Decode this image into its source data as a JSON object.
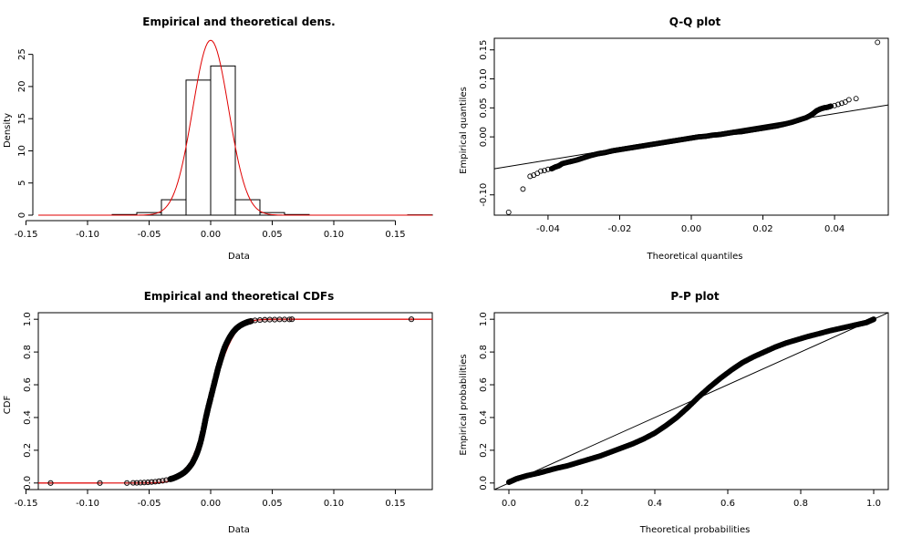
{
  "chart_data": [
    {
      "id": "density",
      "type": "histogram",
      "title": "Empirical and theoretical dens.",
      "xlabel": "Data",
      "ylabel": "Density",
      "xlim": [
        -0.14,
        0.18
      ],
      "ylim": [
        0,
        27.5
      ],
      "x_ticks": [
        -0.15,
        -0.1,
        -0.05,
        0.0,
        0.05,
        0.1,
        0.15
      ],
      "x_tick_labels": [
        "-0.15",
        "-0.10",
        "-0.05",
        "0.00",
        "0.05",
        "0.10",
        "0.15"
      ],
      "y_ticks": [
        0,
        5,
        10,
        15,
        20,
        25
      ],
      "y_tick_labels": [
        "0",
        "5",
        "10",
        "15",
        "20",
        "25"
      ],
      "bins": [
        {
          "x0": -0.08,
          "x1": -0.06,
          "density": 0.1
        },
        {
          "x0": -0.06,
          "x1": -0.04,
          "density": 0.4
        },
        {
          "x0": -0.04,
          "x1": -0.02,
          "density": 2.4
        },
        {
          "x0": -0.02,
          "x1": 0.0,
          "density": 21.0
        },
        {
          "x0": 0.0,
          "x1": 0.02,
          "density": 23.2
        },
        {
          "x0": 0.02,
          "x1": 0.04,
          "density": 2.4
        },
        {
          "x0": 0.04,
          "x1": 0.06,
          "density": 0.4
        },
        {
          "x0": 0.06,
          "x1": 0.08,
          "density": 0.1
        },
        {
          "x0": 0.16,
          "x1": 0.18,
          "density": 0.05
        }
      ],
      "fit": {
        "distribution": "normal",
        "mean": 0.0,
        "sd": 0.0146,
        "peak": 27.2,
        "color": "#e00000"
      }
    },
    {
      "id": "qq",
      "type": "scatter",
      "title": "Q-Q plot",
      "xlabel": "Theoretical quantiles",
      "ylabel": "Empirical quantiles",
      "xlim": [
        -0.055,
        0.055
      ],
      "ylim": [
        -0.135,
        0.17
      ],
      "x_ticks": [
        -0.04,
        -0.02,
        0.0,
        0.02,
        0.04
      ],
      "x_tick_labels": [
        "-0.04",
        "-0.02",
        "0.00",
        "0.02",
        "0.04"
      ],
      "y_ticks": [
        -0.1,
        0.0,
        0.05,
        0.1,
        0.15
      ],
      "y_tick_labels": [
        "-0.10",
        "0.00",
        "0.05",
        "0.10",
        "0.15"
      ],
      "reference_line": {
        "slope": 1,
        "intercept": 0
      },
      "x": [
        -0.051,
        -0.047,
        -0.045,
        -0.044,
        -0.043,
        -0.042,
        -0.041,
        -0.04,
        -0.039,
        -0.038,
        -0.037,
        -0.036,
        -0.034,
        -0.032,
        -0.03,
        -0.028,
        -0.026,
        -0.024,
        -0.022,
        -0.02,
        -0.018,
        -0.016,
        -0.014,
        -0.012,
        -0.01,
        -0.008,
        -0.006,
        -0.004,
        -0.002,
        0.0,
        0.002,
        0.004,
        0.006,
        0.008,
        0.01,
        0.012,
        0.014,
        0.016,
        0.018,
        0.02,
        0.022,
        0.024,
        0.026,
        0.028,
        0.03,
        0.032,
        0.033,
        0.034,
        0.035,
        0.036,
        0.037,
        0.038,
        0.039,
        0.04,
        0.041,
        0.042,
        0.043,
        0.044,
        0.046,
        0.052
      ],
      "y": [
        -0.13,
        -0.09,
        -0.068,
        -0.066,
        -0.063,
        -0.059,
        -0.058,
        -0.056,
        -0.055,
        -0.052,
        -0.05,
        -0.046,
        -0.043,
        -0.04,
        -0.036,
        -0.032,
        -0.029,
        -0.027,
        -0.024,
        -0.022,
        -0.02,
        -0.018,
        -0.016,
        -0.014,
        -0.012,
        -0.01,
        -0.008,
        -0.006,
        -0.004,
        -0.002,
        0.0,
        0.001,
        0.003,
        0.004,
        0.006,
        0.008,
        0.009,
        0.011,
        0.013,
        0.015,
        0.017,
        0.019,
        0.022,
        0.025,
        0.029,
        0.033,
        0.036,
        0.04,
        0.045,
        0.048,
        0.05,
        0.051,
        0.053,
        0.054,
        0.056,
        0.058,
        0.06,
        0.064,
        0.066,
        0.163
      ]
    },
    {
      "id": "cdf",
      "type": "line",
      "title": "Empirical and theoretical CDFs",
      "xlabel": "Data",
      "ylabel": "CDF",
      "xlim": [
        -0.14,
        0.18
      ],
      "ylim": [
        -0.04,
        1.04
      ],
      "x_ticks": [
        -0.15,
        -0.1,
        -0.05,
        0.0,
        0.05,
        0.1,
        0.15
      ],
      "x_tick_labels": [
        "-0.15",
        "-0.10",
        "-0.05",
        "0.00",
        "0.05",
        "0.10",
        "0.15"
      ],
      "y_ticks": [
        0,
        0.2,
        0.4,
        0.6,
        0.8,
        1.0
      ],
      "y_tick_labels": [
        "0.0",
        "0.2",
        "0.4",
        "0.6",
        "0.8",
        "1.0"
      ],
      "fit": {
        "distribution": "normal",
        "mean": 0.0,
        "sd": 0.0146,
        "color": "#e00000"
      },
      "empirical_points": [
        {
          "x": -0.13,
          "y": 0.0
        },
        {
          "x": -0.09,
          "y": 0.0
        },
        {
          "x": -0.068,
          "y": 0.0
        },
        {
          "x": -0.063,
          "y": 0.001
        },
        {
          "x": -0.06,
          "y": 0.001
        },
        {
          "x": -0.057,
          "y": 0.002
        },
        {
          "x": -0.054,
          "y": 0.003
        },
        {
          "x": -0.051,
          "y": 0.004
        },
        {
          "x": -0.048,
          "y": 0.006
        },
        {
          "x": -0.045,
          "y": 0.008
        },
        {
          "x": -0.042,
          "y": 0.011
        },
        {
          "x": -0.039,
          "y": 0.014
        },
        {
          "x": -0.036,
          "y": 0.018
        },
        {
          "x": -0.033,
          "y": 0.023
        },
        {
          "x": -0.03,
          "y": 0.03
        },
        {
          "x": -0.027,
          "y": 0.04
        },
        {
          "x": -0.024,
          "y": 0.052
        },
        {
          "x": -0.021,
          "y": 0.067
        },
        {
          "x": -0.018,
          "y": 0.09
        },
        {
          "x": -0.015,
          "y": 0.12
        },
        {
          "x": -0.012,
          "y": 0.165
        },
        {
          "x": -0.01,
          "y": 0.205
        },
        {
          "x": -0.008,
          "y": 0.255
        },
        {
          "x": -0.006,
          "y": 0.32
        },
        {
          "x": -0.004,
          "y": 0.395
        },
        {
          "x": -0.002,
          "y": 0.46
        },
        {
          "x": 0.0,
          "y": 0.52
        },
        {
          "x": 0.002,
          "y": 0.58
        },
        {
          "x": 0.004,
          "y": 0.64
        },
        {
          "x": 0.006,
          "y": 0.7
        },
        {
          "x": 0.008,
          "y": 0.75
        },
        {
          "x": 0.01,
          "y": 0.8
        },
        {
          "x": 0.012,
          "y": 0.84
        },
        {
          "x": 0.015,
          "y": 0.885
        },
        {
          "x": 0.018,
          "y": 0.92
        },
        {
          "x": 0.021,
          "y": 0.945
        },
        {
          "x": 0.024,
          "y": 0.962
        },
        {
          "x": 0.027,
          "y": 0.974
        },
        {
          "x": 0.03,
          "y": 0.983
        },
        {
          "x": 0.033,
          "y": 0.989
        },
        {
          "x": 0.036,
          "y": 0.993
        },
        {
          "x": 0.04,
          "y": 0.995
        },
        {
          "x": 0.044,
          "y": 0.997
        },
        {
          "x": 0.048,
          "y": 0.998
        },
        {
          "x": 0.052,
          "y": 0.998
        },
        {
          "x": 0.056,
          "y": 0.999
        },
        {
          "x": 0.06,
          "y": 0.999
        },
        {
          "x": 0.064,
          "y": 0.999
        },
        {
          "x": 0.066,
          "y": 1.0
        },
        {
          "x": 0.163,
          "y": 1.0
        }
      ]
    },
    {
      "id": "pp",
      "type": "scatter",
      "title": "P-P plot",
      "xlabel": "Theoretical probabilities",
      "ylabel": "Empirical probabilities",
      "xlim": [
        -0.04,
        1.04
      ],
      "ylim": [
        -0.04,
        1.04
      ],
      "x_ticks": [
        0,
        0.2,
        0.4,
        0.6,
        0.8,
        1.0
      ],
      "x_tick_labels": [
        "0.0",
        "0.2",
        "0.4",
        "0.6",
        "0.8",
        "1.0"
      ],
      "y_ticks": [
        0,
        0.2,
        0.4,
        0.6,
        0.8,
        1.0
      ],
      "y_tick_labels": [
        "0.0",
        "0.2",
        "0.4",
        "0.6",
        "0.8",
        "1.0"
      ],
      "reference_line": {
        "slope": 1,
        "intercept": 0
      },
      "x": [
        0.0,
        0.01,
        0.02,
        0.03,
        0.05,
        0.08,
        0.1,
        0.13,
        0.16,
        0.19,
        0.22,
        0.25,
        0.28,
        0.31,
        0.34,
        0.37,
        0.4,
        0.43,
        0.46,
        0.49,
        0.52,
        0.55,
        0.58,
        0.61,
        0.64,
        0.67,
        0.7,
        0.73,
        0.76,
        0.79,
        0.82,
        0.85,
        0.88,
        0.91,
        0.94,
        0.96,
        0.98,
        0.99,
        1.0
      ],
      "y": [
        0.005,
        0.015,
        0.025,
        0.032,
        0.045,
        0.06,
        0.072,
        0.09,
        0.105,
        0.125,
        0.145,
        0.165,
        0.19,
        0.215,
        0.24,
        0.27,
        0.305,
        0.35,
        0.4,
        0.46,
        0.525,
        0.585,
        0.64,
        0.69,
        0.735,
        0.77,
        0.8,
        0.83,
        0.855,
        0.875,
        0.895,
        0.912,
        0.93,
        0.945,
        0.96,
        0.97,
        0.98,
        0.99,
        1.0
      ]
    }
  ]
}
